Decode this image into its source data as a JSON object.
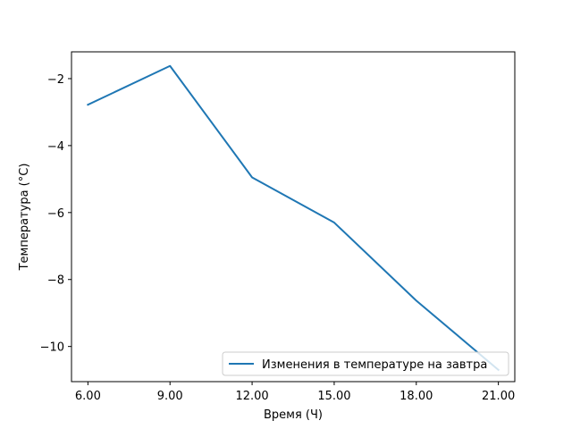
{
  "chart_data": {
    "type": "line",
    "title": "",
    "xlabel": "Время (Ч)",
    "ylabel": "Температура (°C)",
    "x": [
      6,
      9,
      12,
      15,
      18,
      21
    ],
    "x_tick_labels": [
      "6.00",
      "9.00",
      "12.00",
      "15.00",
      "18.00",
      "21.00"
    ],
    "y_ticks": [
      -10,
      -8,
      -6,
      -4,
      -2
    ],
    "y_tick_labels": [
      "−10",
      "−8",
      "−6",
      "−4",
      "−2"
    ],
    "xlim": [
      5.4,
      21.6
    ],
    "ylim": [
      -11.05,
      -1.2
    ],
    "grid": false,
    "legend_position": "lower-right",
    "series": [
      {
        "name": "Изменения в температуре на завтра",
        "color": "#1f77b4",
        "values": [
          -2.78,
          -1.62,
          -4.95,
          -6.3,
          -8.63,
          -10.7
        ]
      }
    ]
  }
}
